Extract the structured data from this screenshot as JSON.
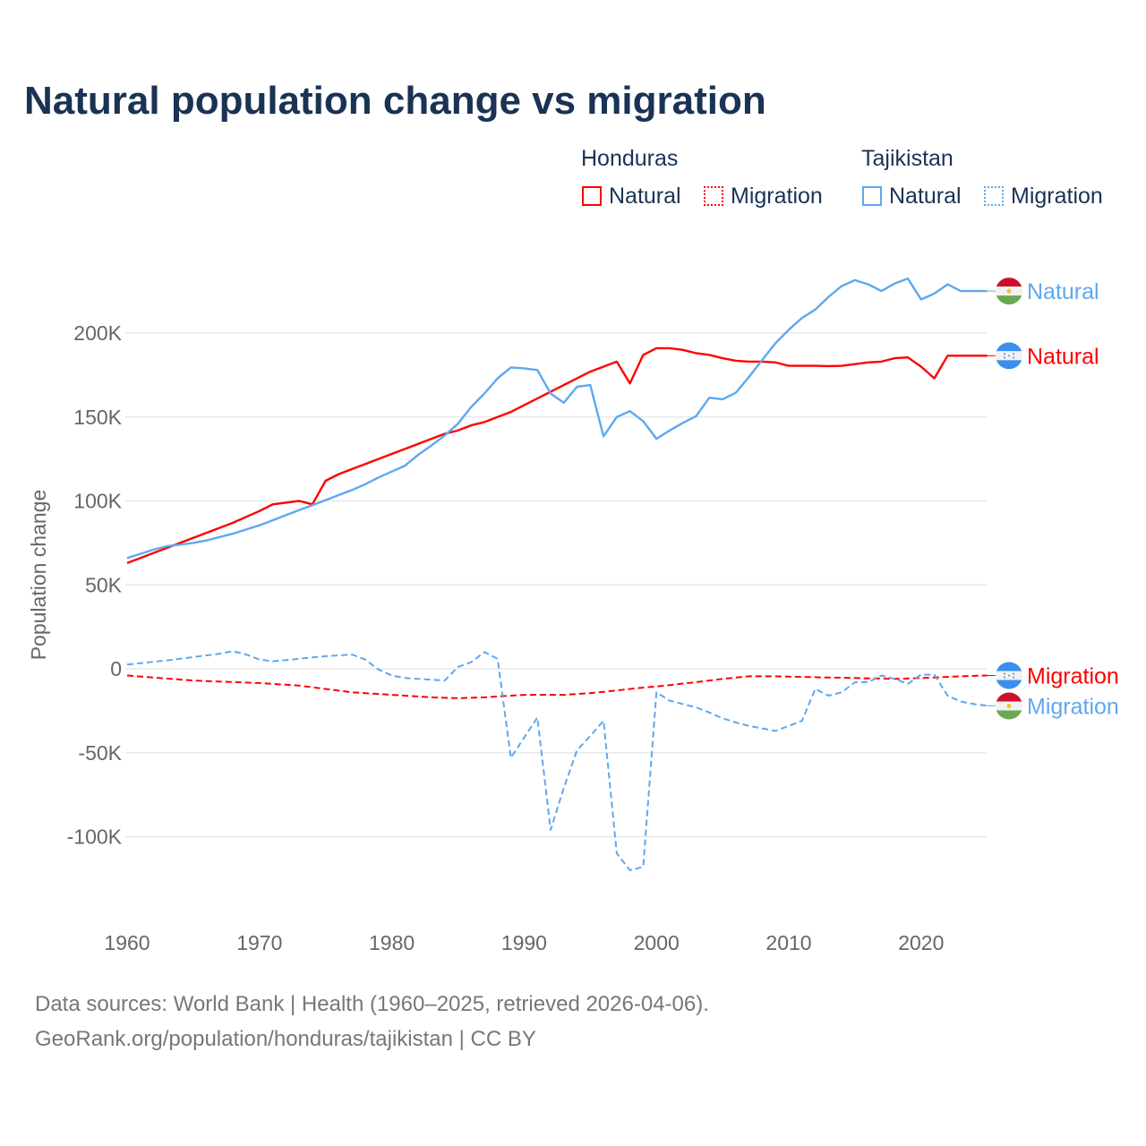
{
  "title": "Natural population change vs migration",
  "legend": {
    "groups": [
      {
        "name": "Honduras",
        "items": [
          "Natural",
          "Migration"
        ]
      },
      {
        "name": "Tajikistan",
        "items": [
          "Natural",
          "Migration"
        ]
      }
    ]
  },
  "footer": {
    "line1": "Data sources: World Bank | Health (1960–2025, retrieved 2026-04-06).",
    "line2": "GeoRank.org/population/honduras/tajikistan | CC BY"
  },
  "colors": {
    "honduras": "#ff0000",
    "tajikistan": "#5ea8ee",
    "title": "#1a3355"
  },
  "chart_data": {
    "type": "line",
    "title": "Natural population change vs migration",
    "xlabel": "",
    "ylabel": "Population change",
    "xlim": [
      1960,
      2025
    ],
    "ylim": [
      -130000,
      250000
    ],
    "x_ticks": [
      "1960",
      "1970",
      "1980",
      "1990",
      "2000",
      "2010",
      "2020"
    ],
    "y_ticks": [
      {
        "v": 200000,
        "label": "200K"
      },
      {
        "v": 150000,
        "label": "150K"
      },
      {
        "v": 100000,
        "label": "100K"
      },
      {
        "v": 50000,
        "label": "50K"
      },
      {
        "v": 0,
        "label": "0"
      },
      {
        "v": -50000,
        "label": "-50K"
      },
      {
        "v": -100000,
        "label": "-100K"
      }
    ],
    "x_start": 1960,
    "unit": "thousands",
    "series": [
      {
        "name": "Honduras Natural",
        "country": "Honduras",
        "kind": "Natural",
        "end_label": "Natural",
        "color": "#ff0000",
        "dash": false,
        "flag": "honduras",
        "values": [
          63,
          66,
          69,
          72,
          75,
          78,
          81,
          84,
          87,
          90.5,
          94,
          98,
          99,
          100,
          98,
          112,
          116,
          119,
          122,
          125,
          128,
          131,
          134,
          137,
          140,
          142,
          145,
          147,
          150,
          153,
          157,
          161,
          165,
          169,
          173,
          177,
          180,
          183,
          170,
          187,
          191,
          191,
          190,
          188,
          187,
          185,
          183.5,
          183,
          183,
          182.5,
          180.5,
          180.5,
          180.5,
          180.3,
          180.5,
          181.5,
          182.5,
          183,
          185,
          185.5,
          180,
          173,
          186.5,
          186.5,
          186.5,
          186.5
        ]
      },
      {
        "name": "Honduras Migration",
        "country": "Honduras",
        "kind": "Migration",
        "end_label": "Migration",
        "color": "#ff0000",
        "dash": true,
        "flag": "honduras",
        "values": [
          -4,
          -4.6,
          -5.2,
          -5.8,
          -6.4,
          -7,
          -7.3,
          -7.6,
          -7.9,
          -8.2,
          -8.5,
          -9,
          -9.5,
          -10,
          -11,
          -12,
          -13,
          -14,
          -14.5,
          -15,
          -15.5,
          -16,
          -16.5,
          -17,
          -17.3,
          -17.5,
          -17.3,
          -17,
          -16.5,
          -16,
          -15.5,
          -15.5,
          -15.5,
          -15.5,
          -15,
          -14.5,
          -13.7,
          -12.9,
          -12,
          -11.2,
          -10.5,
          -9.7,
          -8.8,
          -8,
          -7,
          -6,
          -5.2,
          -4.5,
          -4.5,
          -4.5,
          -4.7,
          -4.8,
          -5,
          -5.2,
          -5.3,
          -5.5,
          -5.7,
          -5.8,
          -6,
          -5.8,
          -5.5,
          -5.2,
          -4.8,
          -4.5,
          -4.2,
          -4
        ]
      },
      {
        "name": "Tajikistan Natural",
        "country": "Tajikistan",
        "kind": "Natural",
        "end_label": "Natural",
        "color": "#5ea8ee",
        "dash": false,
        "flag": "tajikistan",
        "values": [
          66,
          68.5,
          71,
          73,
          74,
          75,
          76.5,
          78.5,
          80.5,
          83,
          85.5,
          88.5,
          91.5,
          94.5,
          97.5,
          100.5,
          103.5,
          106.5,
          110,
          114,
          117.5,
          121,
          127.5,
          133,
          139,
          146,
          156,
          164,
          173,
          179.5,
          179,
          178,
          164,
          158.5,
          168,
          169,
          138.5,
          150,
          153.5,
          147.5,
          137,
          142,
          146.5,
          150.5,
          161.5,
          160.5,
          164.5,
          174,
          184,
          194,
          202,
          209,
          214,
          221.5,
          228,
          231.5,
          229,
          225,
          229.5,
          232.5,
          220,
          223.5,
          229,
          225,
          225,
          225
        ]
      },
      {
        "name": "Tajikistan Migration",
        "country": "Tajikistan",
        "kind": "Migration",
        "end_label": "Migration",
        "color": "#5ea8ee",
        "dash": true,
        "flag": "tajikistan",
        "values": [
          2.5,
          3.3,
          4.2,
          5,
          6,
          7,
          8,
          9,
          10.5,
          8.5,
          5.5,
          4.5,
          5.2,
          6,
          6.8,
          7.5,
          8,
          8.5,
          5.5,
          -0.5,
          -4,
          -5.5,
          -6,
          -6.5,
          -7,
          1,
          4,
          10,
          6,
          -53,
          -41,
          -29,
          -96,
          -71,
          -48.5,
          -40,
          -31,
          -110,
          -120,
          -118,
          -14,
          -19,
          -21,
          -23,
          -26,
          -29.5,
          -32,
          -34,
          -35.5,
          -37,
          -34,
          -31,
          -12,
          -16,
          -14,
          -8,
          -8,
          -4,
          -6,
          -9,
          -3.5,
          -3.5,
          -16,
          -19.5,
          -21,
          -22
        ]
      }
    ]
  }
}
